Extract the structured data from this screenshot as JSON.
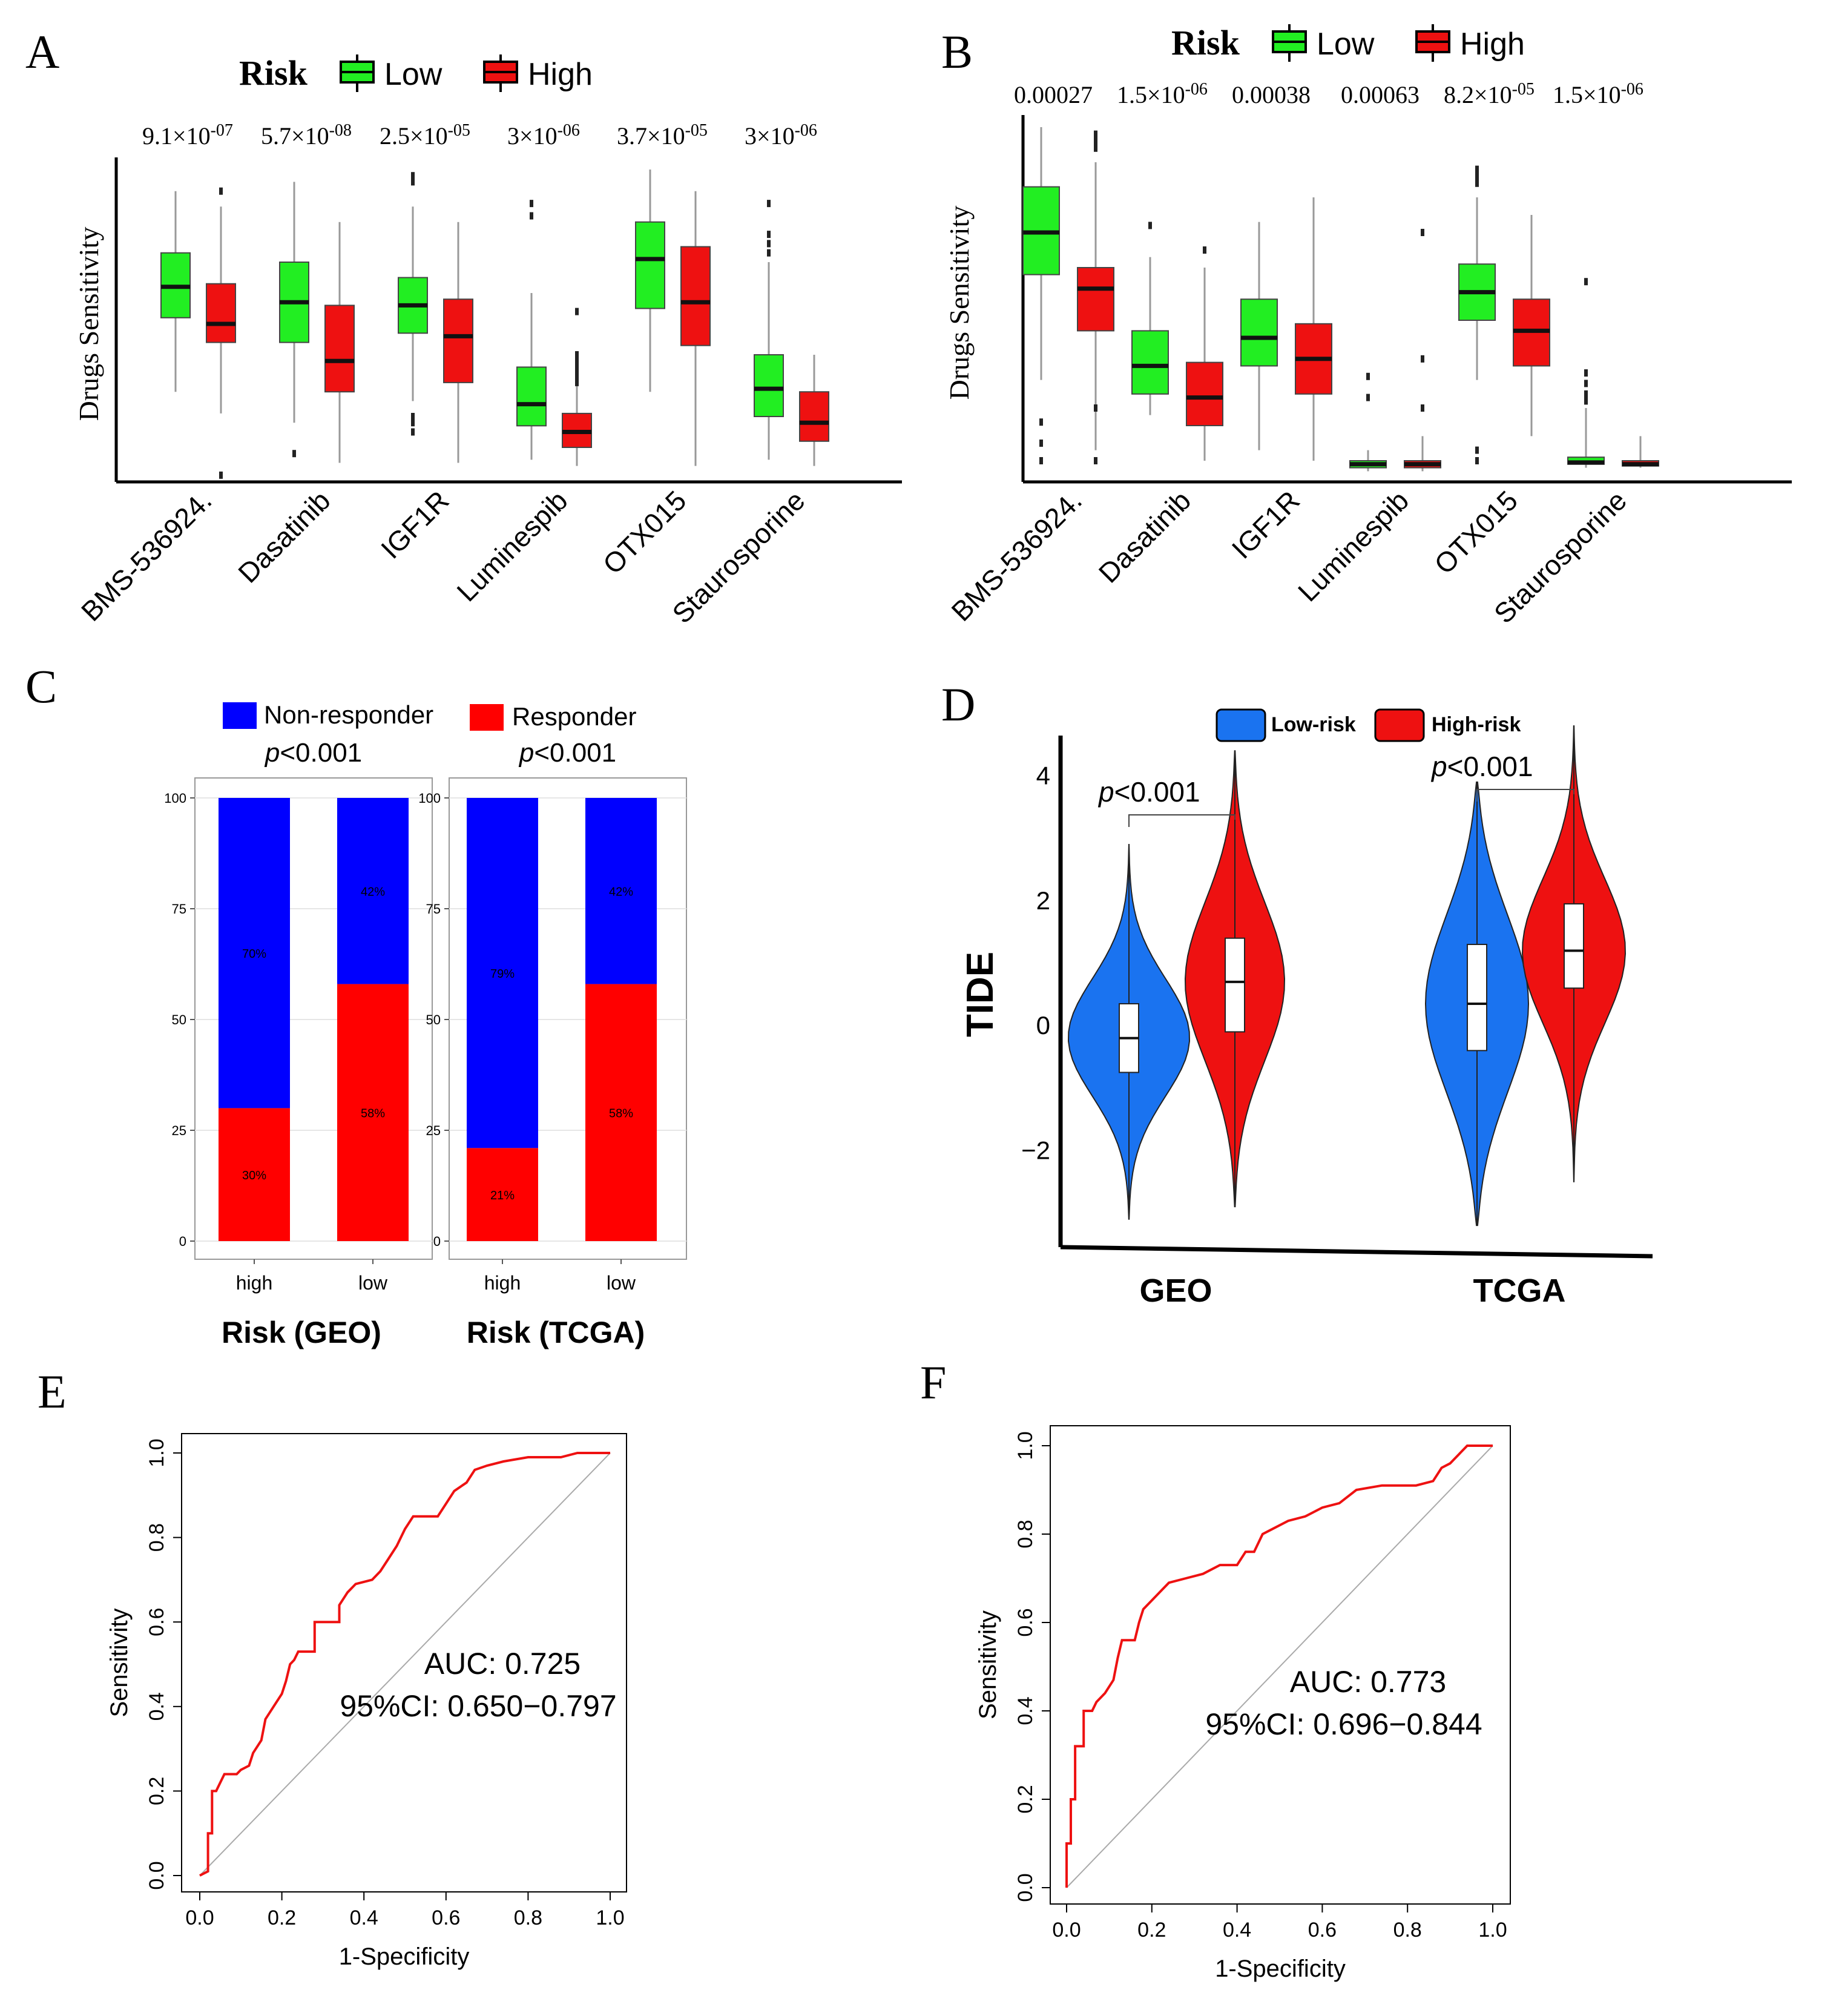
{
  "colors": {
    "low_box": "#22ee22",
    "high_box": "#ee1111",
    "non_responder": "#0000ff",
    "responder": "#ff0000",
    "low_violet": "#1a73f0",
    "high_violet": "#ee1111",
    "roc": "#ee1111",
    "diag": "#aaaaaa"
  },
  "panels": {
    "A": "A",
    "B": "B",
    "C": "C",
    "D": "D",
    "E": "E",
    "F": "F"
  },
  "chart_data": [
    {
      "id": "A",
      "type": "box",
      "ylabel": "Drugs  Sensitivity",
      "legend": {
        "title": "Risk",
        "items": [
          "Low",
          "High"
        ]
      },
      "categories": [
        "BMS-536924.",
        "Dasatinib",
        "IGF1R",
        "Luminespib",
        "OTX015",
        "Staurosporine"
      ],
      "pvalues": [
        {
          "mant": "9.1",
          "exp": "-07"
        },
        {
          "mant": "5.7",
          "exp": "-08"
        },
        {
          "mant": "2.5",
          "exp": "-05"
        },
        {
          "mant": "3",
          "exp": "-06"
        },
        {
          "mant": "3.7",
          "exp": "-05"
        },
        {
          "mant": "3",
          "exp": "-06"
        }
      ],
      "ylim": [
        0,
        100
      ],
      "series": [
        {
          "name": "Low",
          "stats": [
            {
              "wl": 28,
              "q1": 52,
              "med": 62,
              "q3": 73,
              "wh": 93,
              "out": []
            },
            {
              "wl": 18,
              "q1": 44,
              "med": 57,
              "q3": 70,
              "wh": 96,
              "out": [
                8
              ]
            },
            {
              "wl": 25,
              "q1": 47,
              "med": 56,
              "q3": 65,
              "wh": 88,
              "out": [
                15,
                18,
                20,
                96,
                98
              ]
            },
            {
              "wl": 6,
              "q1": 17,
              "med": 24,
              "q3": 36,
              "wh": 60,
              "out": [
                85,
                89
              ]
            },
            {
              "wl": 28,
              "q1": 55,
              "med": 71,
              "q3": 83,
              "wh": 100,
              "out": []
            },
            {
              "wl": 6,
              "q1": 20,
              "med": 29,
              "q3": 40,
              "wh": 70,
              "out": [
                73,
                76,
                79,
                89
              ]
            }
          ]
        },
        {
          "name": "High",
          "stats": [
            {
              "wl": 21,
              "q1": 44,
              "med": 50,
              "q3": 63,
              "wh": 88,
              "out": [
                1,
                93
              ]
            },
            {
              "wl": 5,
              "q1": 28,
              "med": 38,
              "q3": 56,
              "wh": 83,
              "out": []
            },
            {
              "wl": 5,
              "q1": 31,
              "med": 46,
              "q3": 58,
              "wh": 83,
              "out": []
            },
            {
              "wl": 4,
              "q1": 10,
              "med": 15,
              "q3": 21,
              "wh": 30,
              "out": [
                31,
                33,
                34,
                36,
                38,
                40,
                54
              ]
            },
            {
              "wl": 4,
              "q1": 43,
              "med": 57,
              "q3": 75,
              "wh": 93,
              "out": []
            },
            {
              "wl": 4,
              "q1": 12,
              "med": 18,
              "q3": 28,
              "wh": 40,
              "out": []
            }
          ]
        }
      ]
    },
    {
      "id": "B",
      "type": "box",
      "ylabel": "Drugs  Sensitivity",
      "legend": {
        "title": "Risk",
        "items": [
          "Low",
          "High"
        ]
      },
      "categories": [
        "BMS-536924.",
        "Dasatinib",
        "IGF1R",
        "Luminespib",
        "OTX015",
        "Staurosporine"
      ],
      "pvalues": [
        {
          "mant": "0.00027",
          "exp": ""
        },
        {
          "mant": "1.5",
          "exp": "-06"
        },
        {
          "mant": "0.00038",
          "exp": ""
        },
        {
          "mant": "0.00063",
          "exp": ""
        },
        {
          "mant": "8.2",
          "exp": "-05"
        },
        {
          "mant": "1.5",
          "exp": "-06"
        }
      ],
      "ylim": [
        0,
        100
      ],
      "series": [
        {
          "name": "Low",
          "stats": [
            {
              "wl": 28,
              "q1": 58,
              "med": 70,
              "q3": 83,
              "wh": 100,
              "out": [
                5,
                10,
                16
              ]
            },
            {
              "wl": 18,
              "q1": 24,
              "med": 32,
              "q3": 42,
              "wh": 63,
              "out": [
                72
              ]
            },
            {
              "wl": 8,
              "q1": 32,
              "med": 40,
              "q3": 51,
              "wh": 73,
              "out": []
            },
            {
              "wl": 2,
              "q1": 3,
              "med": 4,
              "q3": 5,
              "wh": 8,
              "out": [
                23,
                29
              ]
            },
            {
              "wl": 28,
              "q1": 45,
              "med": 53,
              "q3": 61,
              "wh": 80,
              "out": [
                5,
                8,
                84,
                86,
                88
              ]
            },
            {
              "wl": 3,
              "q1": 4,
              "med": 4.5,
              "q3": 6,
              "wh": 20,
              "out": [
                22,
                24,
                27,
                30,
                56
              ]
            }
          ]
        },
        {
          "name": "High",
          "stats": [
            {
              "wl": 8,
              "q1": 42,
              "med": 54,
              "q3": 60,
              "wh": 90,
              "out": [
                5,
                20,
                94,
                96,
                98
              ]
            },
            {
              "wl": 5,
              "q1": 15,
              "med": 23,
              "q3": 33,
              "wh": 60,
              "out": [
                65
              ]
            },
            {
              "wl": 5,
              "q1": 24,
              "med": 34,
              "q3": 44,
              "wh": 80,
              "out": []
            },
            {
              "wl": 2,
              "q1": 3,
              "med": 4,
              "q3": 5,
              "wh": 12,
              "out": [
                20,
                34,
                70
              ]
            },
            {
              "wl": 12,
              "q1": 32,
              "med": 42,
              "q3": 51,
              "wh": 75,
              "out": []
            },
            {
              "wl": 3,
              "q1": 3.5,
              "med": 4,
              "q3": 5,
              "wh": 12,
              "out": []
            }
          ]
        }
      ]
    },
    {
      "id": "C",
      "type": "stacked-bar",
      "legend": [
        "Non-responder",
        "Responder"
      ],
      "yticks": [
        "0",
        "25",
        "50",
        "75",
        "100"
      ],
      "facets": [
        {
          "pvalue": "p<0.001",
          "xlabel": "Risk (GEO)",
          "categories": [
            "high",
            "low"
          ],
          "responder": [
            30,
            58
          ],
          "non_responder": [
            70,
            42
          ],
          "labels_nr": [
            "70%",
            "42%"
          ],
          "labels_r": [
            "30%",
            "58%"
          ]
        },
        {
          "pvalue": "p<0.001",
          "xlabel": "Risk (TCGA)",
          "categories": [
            "high",
            "low"
          ],
          "responder": [
            21,
            58
          ],
          "non_responder": [
            79,
            42
          ],
          "labels_nr": [
            "79%",
            "42%"
          ],
          "labels_r": [
            "21%",
            "58%"
          ]
        }
      ]
    },
    {
      "id": "D",
      "type": "violin",
      "ylabel": "TIDE",
      "legend": [
        "Low-risk",
        "High-risk"
      ],
      "yticks": [
        "-2",
        "0",
        "2",
        "4"
      ],
      "ylim": [
        -3.5,
        4.5
      ],
      "categories": [
        "GEO",
        "TCGA"
      ],
      "pvalues": [
        "p<0.001",
        "p<0.001"
      ],
      "groups": [
        [
          {
            "name": "Low-risk",
            "min": -3.1,
            "q1": -0.75,
            "med": -0.2,
            "q3": 0.35,
            "max": 2.9
          },
          {
            "name": "High-risk",
            "min": -2.9,
            "q1": -0.1,
            "med": 0.7,
            "q3": 1.4,
            "max": 4.4
          }
        ],
        [
          {
            "name": "Low-risk",
            "min": -3.2,
            "q1": -0.4,
            "med": 0.35,
            "q3": 1.3,
            "max": 3.9
          },
          {
            "name": "High-risk",
            "min": -2.5,
            "q1": 0.6,
            "med": 1.2,
            "q3": 1.95,
            "max": 4.8
          }
        ]
      ]
    },
    {
      "id": "E",
      "type": "line",
      "xlabel": "1-Specificity",
      "ylabel": "Sensitivity",
      "xlim": [
        0,
        1
      ],
      "ylim": [
        0,
        1
      ],
      "ticks": [
        "0.0",
        "0.2",
        "0.4",
        "0.6",
        "0.8",
        "1.0"
      ],
      "auc": "AUC: 0.725",
      "ci": "95%CI: 0.650−0.797",
      "points": [
        [
          0,
          0
        ],
        [
          0.02,
          0.01
        ],
        [
          0.02,
          0.1
        ],
        [
          0.03,
          0.1
        ],
        [
          0.03,
          0.2
        ],
        [
          0.04,
          0.2
        ],
        [
          0.05,
          0.22
        ],
        [
          0.06,
          0.24
        ],
        [
          0.09,
          0.24
        ],
        [
          0.1,
          0.25
        ],
        [
          0.12,
          0.26
        ],
        [
          0.13,
          0.29
        ],
        [
          0.15,
          0.32
        ],
        [
          0.16,
          0.37
        ],
        [
          0.18,
          0.4
        ],
        [
          0.2,
          0.43
        ],
        [
          0.21,
          0.46
        ],
        [
          0.22,
          0.5
        ],
        [
          0.23,
          0.51
        ],
        [
          0.24,
          0.53
        ],
        [
          0.28,
          0.53
        ],
        [
          0.28,
          0.6
        ],
        [
          0.34,
          0.6
        ],
        [
          0.34,
          0.64
        ],
        [
          0.36,
          0.67
        ],
        [
          0.38,
          0.69
        ],
        [
          0.42,
          0.7
        ],
        [
          0.44,
          0.72
        ],
        [
          0.46,
          0.75
        ],
        [
          0.48,
          0.78
        ],
        [
          0.5,
          0.82
        ],
        [
          0.52,
          0.85
        ],
        [
          0.58,
          0.85
        ],
        [
          0.6,
          0.88
        ],
        [
          0.62,
          0.91
        ],
        [
          0.65,
          0.93
        ],
        [
          0.67,
          0.96
        ],
        [
          0.7,
          0.97
        ],
        [
          0.74,
          0.98
        ],
        [
          0.8,
          0.99
        ],
        [
          0.88,
          0.99
        ],
        [
          0.92,
          1
        ],
        [
          1,
          1
        ]
      ]
    },
    {
      "id": "F",
      "type": "line",
      "xlabel": "1-Specificity",
      "ylabel": "Sensitivity",
      "xlim": [
        0,
        1
      ],
      "ylim": [
        0,
        1
      ],
      "ticks": [
        "0.0",
        "0.2",
        "0.4",
        "0.6",
        "0.8",
        "1.0"
      ],
      "auc": "AUC: 0.773",
      "ci": "95%CI: 0.696−0.844",
      "points": [
        [
          0,
          0
        ],
        [
          0,
          0.1
        ],
        [
          0.01,
          0.1
        ],
        [
          0.01,
          0.2
        ],
        [
          0.02,
          0.2
        ],
        [
          0.02,
          0.32
        ],
        [
          0.04,
          0.32
        ],
        [
          0.04,
          0.4
        ],
        [
          0.06,
          0.4
        ],
        [
          0.07,
          0.42
        ],
        [
          0.09,
          0.44
        ],
        [
          0.11,
          0.47
        ],
        [
          0.12,
          0.52
        ],
        [
          0.13,
          0.56
        ],
        [
          0.16,
          0.56
        ],
        [
          0.17,
          0.6
        ],
        [
          0.18,
          0.63
        ],
        [
          0.2,
          0.65
        ],
        [
          0.22,
          0.67
        ],
        [
          0.24,
          0.69
        ],
        [
          0.28,
          0.7
        ],
        [
          0.32,
          0.71
        ],
        [
          0.36,
          0.73
        ],
        [
          0.4,
          0.73
        ],
        [
          0.42,
          0.76
        ],
        [
          0.44,
          0.76
        ],
        [
          0.46,
          0.8
        ],
        [
          0.48,
          0.81
        ],
        [
          0.52,
          0.83
        ],
        [
          0.56,
          0.84
        ],
        [
          0.6,
          0.86
        ],
        [
          0.64,
          0.87
        ],
        [
          0.68,
          0.9
        ],
        [
          0.74,
          0.91
        ],
        [
          0.82,
          0.91
        ],
        [
          0.86,
          0.92
        ],
        [
          0.88,
          0.95
        ],
        [
          0.9,
          0.96
        ],
        [
          0.92,
          0.98
        ],
        [
          0.94,
          1
        ],
        [
          1,
          1
        ]
      ]
    }
  ]
}
